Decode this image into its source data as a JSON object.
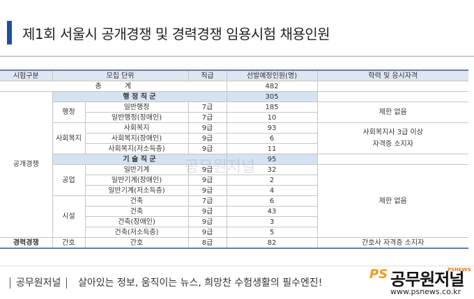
{
  "title": "제1회 서울시 공개경쟁 및 경력경쟁 임용시험 채용인원",
  "table": {
    "headers": [
      "시험구분",
      "모집 단위",
      "직급",
      "선발예정인원(명)",
      "학력 및 응시자격"
    ],
    "total": {
      "label": "총 계",
      "count": 482
    },
    "open": {
      "label": "공개경쟁",
      "families": [
        {
          "label": "행 정 직 군",
          "count": 305,
          "units": [
            {
              "label": "행정",
              "qualification": [
                "제한 없음"
              ],
              "rows": [
                [
                  "일반행정",
                  "7급",
                  185
                ],
                [
                  "일반행정(장애인)",
                  "7급",
                  10
                ]
              ]
            },
            {
              "label": "사회복지",
              "qualification": [
                "사회복지사 3급 이상",
                "자격증 소지자"
              ],
              "rows": [
                [
                  "사회복지",
                  "9급",
                  93
                ],
                [
                  "사회복지(장애인)",
                  "9급",
                  6
                ],
                [
                  "사회복지(저소득층)",
                  "9급",
                  11
                ]
              ]
            }
          ]
        },
        {
          "label": "기 술 직 군",
          "count": 95,
          "qualification": [
            "제한 없음"
          ],
          "units": [
            {
              "label": "공업",
              "rows": [
                [
                  "일반기계",
                  "9급",
                  32
                ],
                [
                  "일반기계(장애인)",
                  "9급",
                  2
                ],
                [
                  "일반기계(저소득층)",
                  "9급",
                  4
                ]
              ]
            },
            {
              "label": "시설",
              "rows": [
                [
                  "건축",
                  "7급",
                  6
                ],
                [
                  "건축",
                  "9급",
                  43
                ],
                [
                  "건축(장애인)",
                  "9급",
                  3
                ],
                [
                  "건축(저소득층)",
                  "9급",
                  5
                ]
              ]
            }
          ]
        }
      ]
    },
    "career": {
      "label": "경력경쟁",
      "group": "간호",
      "unit": "간호",
      "grade": "8급",
      "count": 82,
      "qualification": "간호사 자격증 소지자"
    }
  },
  "watermark": "공무원저널",
  "footer": {
    "brand": "공무원저널",
    "slogan": "살아있는 정보, 움직이는 뉴스, 희망찬 수험생활의 필수엔진!",
    "logo": {
      "mark": "PS",
      "name": "공무원저널",
      "sub": "PSNEWS",
      "url": "www.psnews.co.kr"
    }
  }
}
